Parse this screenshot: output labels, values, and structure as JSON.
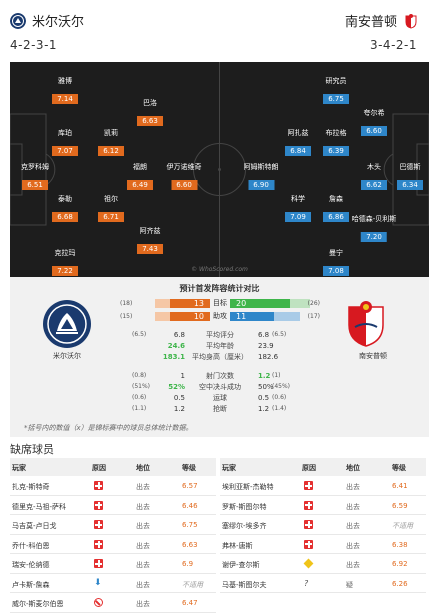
{
  "home": {
    "name": "米尔沃尔",
    "formation": "4-2-3-1",
    "label": "米尔沃尔",
    "color": "#1a3a6e"
  },
  "away": {
    "name": "南安普顿",
    "formation": "3-4-2-1",
    "label": "南安普顿",
    "color": "#d71920"
  },
  "pitch": {
    "watermark": "© WhoScored.com",
    "home_players": [
      {
        "name": "雅博",
        "rating": "7.14"
      },
      {
        "name": "巴洛",
        "rating": "6.63"
      },
      {
        "name": "库珀",
        "rating": "7.07"
      },
      {
        "name": "凯莉",
        "rating": "6.12"
      },
      {
        "name": "克罗科姆",
        "rating": "6.51"
      },
      {
        "name": "福朗",
        "rating": "6.49"
      },
      {
        "name": "伊万诺维奇",
        "rating": "6.60"
      },
      {
        "name": "泰勒",
        "rating": "6.68"
      },
      {
        "name": "祖尔",
        "rating": "6.71"
      },
      {
        "name": "阿齐兹",
        "rating": "7.43"
      },
      {
        "name": "克拉玛",
        "rating": "7.22"
      }
    ],
    "away_players": [
      {
        "name": "研究员",
        "rating": "6.75"
      },
      {
        "name": "夸尔希",
        "rating": "6.60"
      },
      {
        "name": "阿扎兹",
        "rating": "6.84"
      },
      {
        "name": "布拉格",
        "rating": "6.39"
      },
      {
        "name": "阿姆斯特朗",
        "rating": "6.90"
      },
      {
        "name": "木头",
        "rating": "6.62"
      },
      {
        "name": "巴德斯",
        "rating": "6.34"
      },
      {
        "name": "科学",
        "rating": "7.09"
      },
      {
        "name": "詹森",
        "rating": "6.86"
      },
      {
        "name": "哈德森-贝利斯",
        "rating": "7.20"
      },
      {
        "name": "曼宁",
        "rating": "7.08"
      }
    ]
  },
  "stats": {
    "title": "预计首发阵容统计对比",
    "goals": {
      "label": "目标",
      "home": "13",
      "away": "20",
      "home_rank": "(18)",
      "away_rank": "(26)"
    },
    "assists": {
      "label": "助攻",
      "home": "10",
      "away": "11",
      "home_rank": "(15)",
      "away_rank": "(17)"
    },
    "rows": [
      {
        "label": "平均评分",
        "home": "6.8",
        "away": "6.8",
        "home_rank": "(6.5)",
        "away_rank": "(6.5)",
        "home_hi": false,
        "away_hi": false
      },
      {
        "label": "平均年龄",
        "home": "24.6",
        "away": "23.9",
        "home_rank": "",
        "away_rank": "",
        "home_hi": true,
        "away_hi": false
      },
      {
        "label": "平均身高（厘米）",
        "home": "183.1",
        "away": "182.6",
        "home_rank": "",
        "away_rank": "",
        "home_hi": true,
        "away_hi": false
      },
      {
        "label": "射门次数",
        "home": "1",
        "away": "1.2",
        "home_rank": "(0.8)",
        "away_rank": "(1)",
        "home_hi": false,
        "away_hi": true
      },
      {
        "label": "空中决斗成功",
        "home": "52%",
        "away": "50%",
        "home_rank": "(51%)",
        "away_rank": "(45%)",
        "home_hi": true,
        "away_hi": false
      },
      {
        "label": "运球",
        "home": "0.5",
        "away": "0.5",
        "home_rank": "(0.6)",
        "away_rank": "(0.6)",
        "home_hi": false,
        "away_hi": false
      },
      {
        "label": "抢断",
        "home": "1.2",
        "away": "1.2",
        "home_rank": "(1.1)",
        "away_rank": "(1.4)",
        "home_hi": false,
        "away_hi": false
      }
    ],
    "footnote": "*括号内的数值（x）是锦标赛中的球员总体统计数据。"
  },
  "missing": {
    "title": "缺席球员",
    "headers": {
      "player": "玩家",
      "reason": "原因",
      "position": "地位",
      "rating": "等级"
    },
    "home": [
      {
        "name": "扎克-斯特奇",
        "reason": "injury",
        "position": "出去",
        "rating": "6.57"
      },
      {
        "name": "德里克-马祖-萨科",
        "reason": "injury",
        "position": "出去",
        "rating": "6.46"
      },
      {
        "name": "马吉莫-卢日戈",
        "reason": "injury",
        "position": "出去",
        "rating": "6.75"
      },
      {
        "name": "乔什-科伯恩",
        "reason": "injury",
        "position": "出去",
        "rating": "6.63"
      },
      {
        "name": "瑞安-伦纳德",
        "reason": "injury",
        "position": "出去",
        "rating": "6.9"
      },
      {
        "name": "卢卡斯-詹森",
        "reason": "arrow",
        "position": "出去",
        "rating": "不适用"
      },
      {
        "name": "威尔-斯麦尔伯恩",
        "reason": "ban",
        "position": "出去",
        "rating": "6.47"
      }
    ],
    "away": [
      {
        "name": "埃利亚斯-杰勒特",
        "reason": "injury",
        "position": "出去",
        "rating": "6.41"
      },
      {
        "name": "罗斯-斯图尔特",
        "reason": "injury",
        "position": "出去",
        "rating": "6.59"
      },
      {
        "name": "塞缪尔-埃多齐",
        "reason": "injury",
        "position": "出去",
        "rating": "不适用"
      },
      {
        "name": "弗林-唐斯",
        "reason": "injury",
        "position": "出去",
        "rating": "6.38"
      },
      {
        "name": "谢伊-查尔斯",
        "reason": "diamond",
        "position": "出去",
        "rating": "6.92"
      },
      {
        "name": "马基-斯图尔夫",
        "reason": "question",
        "position": "疑",
        "rating": "6.26"
      }
    ]
  }
}
